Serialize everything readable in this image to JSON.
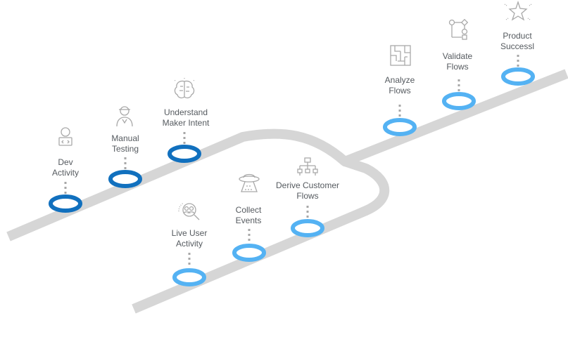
{
  "colors": {
    "road": "#d6d6d6",
    "dark_node": "#1170be",
    "light_node": "#54b2f3",
    "dots": "#a7a7a7",
    "icon": "#a9a9a9",
    "text": "#555a5f"
  },
  "upper_path": {
    "steps": [
      {
        "label": "Dev\nActivity",
        "icon": "developer-icon"
      },
      {
        "label": "Manual\nTesting",
        "icon": "tester-icon"
      },
      {
        "label": "Understand\nMaker Intent",
        "icon": "brain-icon"
      }
    ]
  },
  "lower_path": {
    "steps": [
      {
        "label": "Live User\nActivity",
        "icon": "users-search-icon"
      },
      {
        "label": "Collect\nEvents",
        "icon": "ufo-icon"
      },
      {
        "label": "Derive Customer\nFlows",
        "icon": "hierarchy-icon"
      }
    ]
  },
  "merged_path": {
    "steps": [
      {
        "label": "Analyze\nFlows",
        "icon": "maze-icon"
      },
      {
        "label": "Validate\nFlows",
        "icon": "flow-icon"
      },
      {
        "label": "Product\nSuccessl",
        "icon": "sparkle-icon"
      }
    ]
  }
}
